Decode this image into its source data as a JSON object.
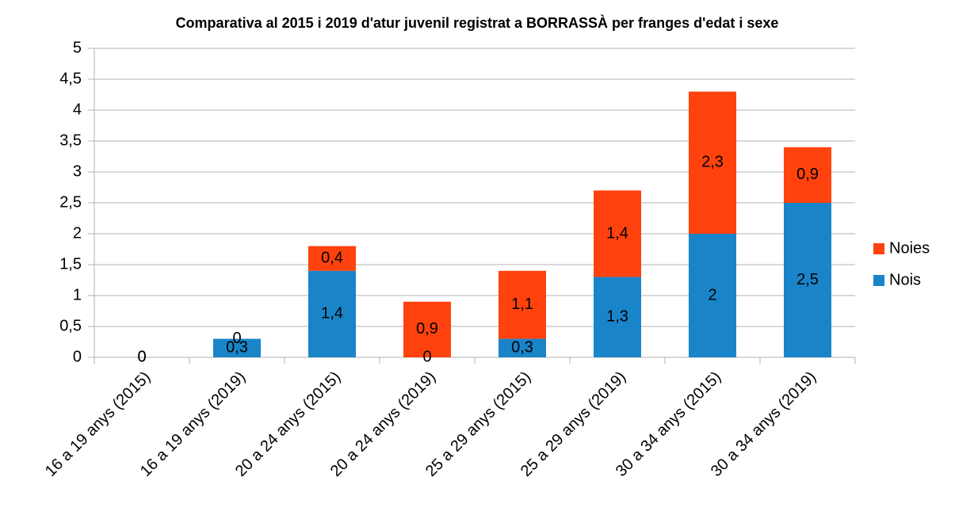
{
  "chart_data": {
    "type": "bar",
    "stacked": true,
    "title": "Comparativa al 2015 i 2019 d'atur juvenil registrat a BORRASSÀ per franges d'edat i sexe",
    "categories": [
      "16 a 19 anys (2015)",
      "16 a 19 anys (2019)",
      "20 a 24 anys (2015)",
      "20 a 24 anys (2019)",
      "25 a 29 anys (2015)",
      "25 a 29 anys (2019)",
      "30 a 34 anys (2015)",
      "30 a 34 anys (2019)"
    ],
    "series": [
      {
        "name": "Nois",
        "color": "#1a84c9",
        "values": [
          0,
          0.3,
          1.4,
          0,
          0.3,
          1.3,
          2,
          2.5
        ],
        "value_labels": [
          "0",
          "0,3",
          "1,4",
          "0",
          "0,3",
          "1,3",
          "2",
          "2,5"
        ]
      },
      {
        "name": "Noies",
        "color": "#ff420e",
        "values": [
          0,
          0,
          0.4,
          0.9,
          1.1,
          1.4,
          2.3,
          0.9
        ],
        "value_labels": [
          "0",
          "0",
          "0,4",
          "0,9",
          "1,1",
          "1,4",
          "2,3",
          "0,9"
        ]
      }
    ],
    "ylim": [
      0,
      5
    ],
    "yticks": [
      0,
      {
        "value": 0.5,
        "label": "0,5"
      },
      1,
      {
        "value": 1.5,
        "label": "1,5"
      },
      2,
      {
        "value": 2.5,
        "label": "2,5"
      },
      3,
      {
        "value": 3.5,
        "label": "3,5"
      },
      4,
      {
        "value": 4.5,
        "label": "4,5"
      },
      5
    ],
    "grid": true,
    "legend": "right"
  }
}
